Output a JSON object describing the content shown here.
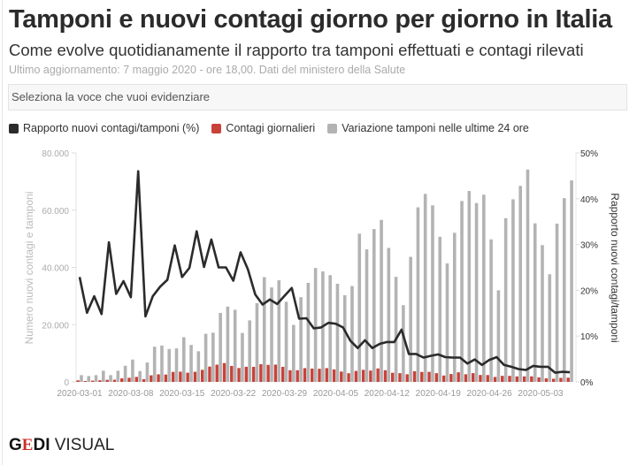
{
  "header": {
    "title": "Tamponi e nuovi contagi giorno per giorno in Italia",
    "subtitle": "Come evolve quotidianamente il rapporto tra tamponi effettuati e contagi rilevati",
    "meta": "Ultimo aggiornamento: 7 maggio 2020 - ore 18,00. Dati del ministero della Salute"
  },
  "select": {
    "placeholder": "Seleziona la voce che vuoi evidenziare"
  },
  "logo": {
    "text": "GEDI VISUAL"
  },
  "chart_data": {
    "type": "bar+line",
    "start_date": "2020-03-01",
    "end_date": "2020-05-07",
    "x_ticks": [
      "2020-03-01",
      "2020-03-08",
      "2020-03-15",
      "2020-03-22",
      "2020-03-29",
      "2020-04-05",
      "2020-04-12",
      "2020-04-19",
      "2020-04-26",
      "2020-05-03"
    ],
    "ylabel_left": "Numero nuovi contagi e tamponi",
    "ylabel_right": "Rapporto nuovi contagi/tamponi",
    "ylim_left": [
      0,
      80000
    ],
    "ylim_right": [
      0,
      50
    ],
    "yticks_left": [
      "0",
      "20.000",
      "40.000",
      "60.000",
      "80.000"
    ],
    "yticks_right": [
      "0%",
      "10%",
      "20%",
      "30%",
      "40%",
      "50%"
    ],
    "legend_position": "top-left",
    "colors": {
      "ratio": "#2b2b2b",
      "cases": "#c8423a",
      "tests": "#b3b3b3"
    },
    "series": [
      {
        "name": "Rapporto nuovi contagi/tamponi (%)",
        "type": "line",
        "axis": "right",
        "values": [
          22.9,
          15.1,
          18.7,
          14.8,
          30.5,
          19.2,
          22.0,
          18.5,
          46.0,
          14.3,
          18.7,
          20.8,
          22.3,
          29.8,
          22.9,
          24.9,
          32.9,
          25.1,
          31.1,
          25.0,
          25.0,
          22.1,
          28.3,
          24.6,
          19.1,
          16.9,
          18.0,
          17.0,
          18.8,
          20.5,
          13.8,
          13.9,
          11.7,
          11.9,
          12.9,
          12.7,
          11.9,
          9.0,
          7.4,
          9.1,
          7.4,
          8.3,
          8.7,
          8.7,
          11.4,
          6.1,
          6.1,
          5.3,
          5.7,
          6.0,
          5.4,
          5.3,
          5.3,
          4.0,
          4.9,
          3.7,
          4.8,
          5.4,
          3.7,
          3.3,
          2.8,
          2.6,
          3.5,
          3.3,
          3.3,
          2.0,
          2.2,
          2.1
        ]
      },
      {
        "name": "Contagi giornalieri",
        "type": "bar",
        "axis": "left",
        "values": [
          540,
          310,
          441,
          577,
          720,
          749,
          1241,
          1443,
          1748,
          968,
          2300,
          2642,
          2565,
          3487,
          3572,
          3212,
          3520,
          4217,
          5349,
          6025,
          6575,
          5569,
          4839,
          5289,
          5253,
          6185,
          5940,
          6035,
          5264,
          4080,
          4085,
          4809,
          4657,
          4593,
          4812,
          4356,
          3606,
          3015,
          3833,
          4213,
          3952,
          4698,
          4072,
          3193,
          3055,
          2666,
          3721,
          3482,
          3517,
          3042,
          2236,
          2761,
          3350,
          2668,
          3063,
          2420,
          2390,
          1728,
          2116,
          2105,
          1918,
          1929,
          1939,
          1577,
          1241,
          1106,
          1412,
          1478
        ]
      },
      {
        "name": "Variazione tamponi nelle ultime 24 ore",
        "type": "bar",
        "axis": "left",
        "values": [
          2360,
          2050,
          2360,
          3900,
          2360,
          3900,
          5640,
          7800,
          3800,
          6770,
          12300,
          12700,
          11500,
          11700,
          15600,
          12900,
          10700,
          16800,
          17200,
          24100,
          26300,
          25200,
          17100,
          21500,
          27500,
          36600,
          33000,
          35500,
          28000,
          19900,
          29600,
          34600,
          39800,
          38600,
          37300,
          34300,
          30300,
          33500,
          51800,
          46300,
          53400,
          56600,
          46800,
          36700,
          26800,
          43700,
          61000,
          65700,
          61700,
          50700,
          41400,
          52100,
          63200,
          66700,
          62500,
          65400,
          49800,
          32000,
          57200,
          63800,
          68500,
          74200,
          55400,
          47800,
          37600,
          55300,
          64200,
          70400
        ]
      }
    ]
  }
}
